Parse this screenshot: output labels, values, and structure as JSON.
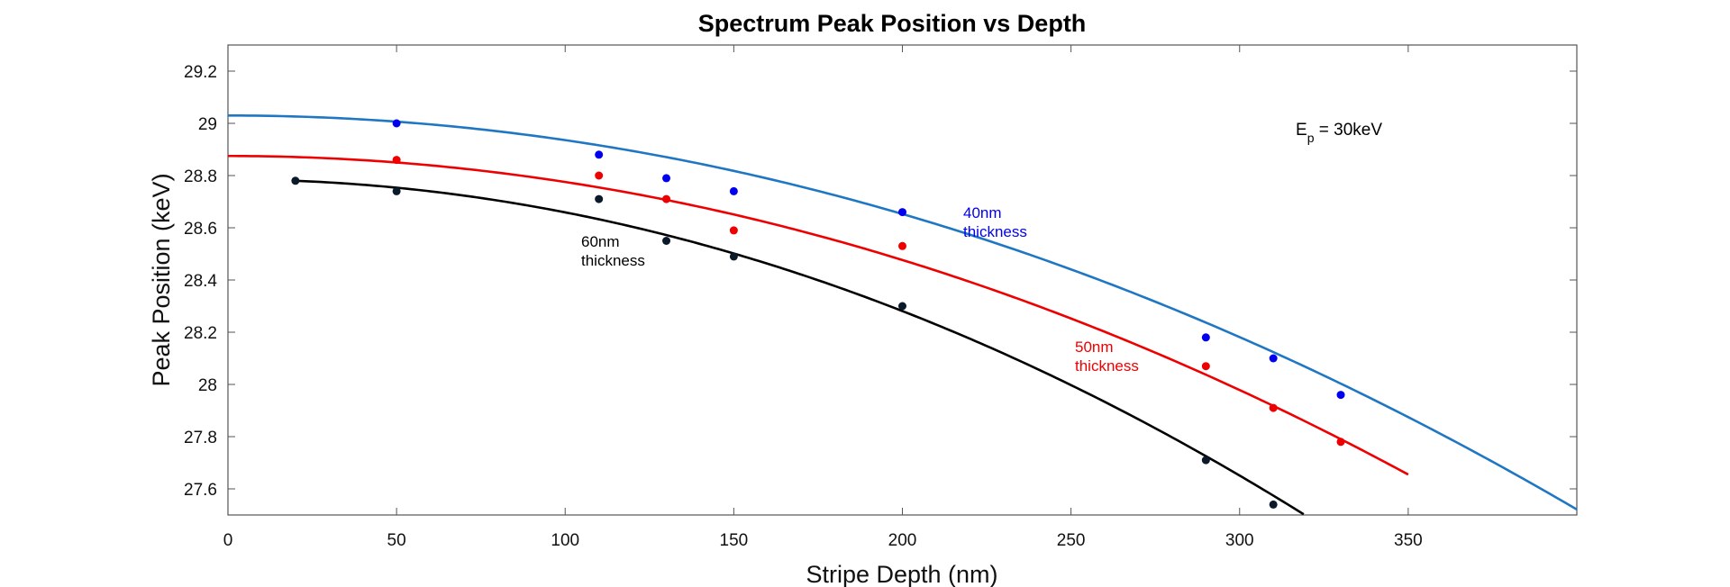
{
  "chart_data": {
    "type": "scatter",
    "title": "Spectrum Peak Position vs Depth",
    "xlabel": "Stripe Depth (nm)",
    "ylabel": "Peak Position (keV)",
    "xlim": [
      0,
      400
    ],
    "ylim": [
      27.5,
      29.3
    ],
    "x_ticks": [
      0,
      50,
      100,
      150,
      200,
      250,
      300,
      350
    ],
    "y_ticks": [
      27.6,
      27.8,
      28,
      28.2,
      28.4,
      28.6,
      28.8,
      29,
      29.2
    ],
    "x_tick_labels": [
      "0",
      "50",
      "100",
      "150",
      "200",
      "250",
      "300",
      "350"
    ],
    "y_tick_labels": [
      "27.6",
      "27.8",
      "28",
      "28.2",
      "28.4",
      "28.6",
      "28.8",
      "29",
      "29.2"
    ],
    "grid": false,
    "energy_annotation": {
      "base": "E",
      "subscript": "p",
      "rest": " = 30keV"
    },
    "series": [
      {
        "name": "40nm thickness",
        "label_lines": [
          "40nm",
          "thickness"
        ],
        "point_color": "#0000ee",
        "curve_color": "#1f77c4",
        "x": [
          50,
          110,
          130,
          150,
          200,
          290,
          310,
          330
        ],
        "y": [
          29.0,
          28.88,
          28.79,
          28.74,
          28.66,
          28.18,
          28.1,
          27.96
        ],
        "fit": {
          "a": 29.03,
          "b": 0.0,
          "c": -9.43e-06
        },
        "fit_range": [
          0,
          400
        ]
      },
      {
        "name": "50nm thickness",
        "label_lines": [
          "50nm",
          "thickness"
        ],
        "point_color": "#ee0000",
        "curve_color": "#ee0000",
        "x": [
          50,
          110,
          130,
          150,
          200,
          290,
          310,
          330
        ],
        "y": [
          28.86,
          28.8,
          28.71,
          28.59,
          28.53,
          28.07,
          27.91,
          27.78
        ],
        "fit": {
          "a": 28.875,
          "b": 0.0,
          "c": -9.96e-06
        },
        "fit_range": [
          0,
          350
        ]
      },
      {
        "name": "60nm thickness",
        "label_lines": [
          "60nm",
          "thickness"
        ],
        "point_color": "#0b1a2a",
        "curve_color": "#000000",
        "x": [
          20,
          50,
          110,
          130,
          150,
          200,
          290,
          310
        ],
        "y": [
          28.78,
          28.74,
          28.71,
          28.55,
          28.49,
          28.3,
          27.71,
          27.54
        ],
        "fit": {
          "a": 28.785,
          "b": 0.0,
          "c": -1.26e-05
        },
        "fit_range": [
          20,
          319
        ]
      }
    ]
  }
}
